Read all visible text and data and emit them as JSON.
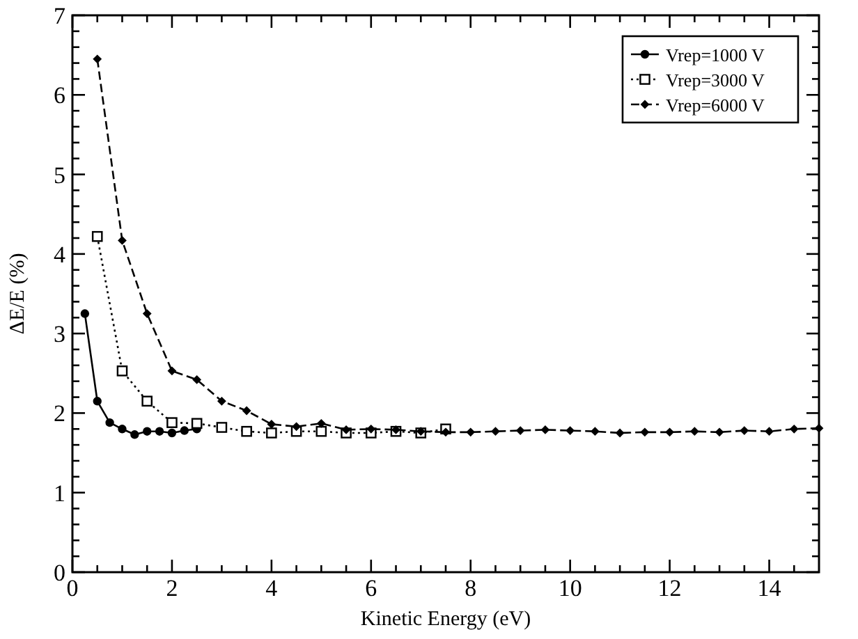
{
  "chart_data": {
    "type": "line",
    "xlabel": "Kinetic Energy (eV)",
    "ylabel": "ΔE/E (%)",
    "xlim": [
      0,
      15
    ],
    "ylim": [
      0,
      7
    ],
    "xticks": [
      0,
      {
        "value": 0.5,
        "label": null
      },
      {
        "value": 1,
        "label": null
      },
      {
        "value": 1.5,
        "label": null
      },
      2,
      {
        "value": 2.5,
        "label": null
      },
      {
        "value": 3,
        "label": null
      },
      {
        "value": 3.5,
        "label": null
      },
      4,
      {
        "value": 4.5,
        "label": null
      },
      {
        "value": 5,
        "label": null
      },
      {
        "value": 5.5,
        "label": null
      },
      6,
      {
        "value": 6.5,
        "label": null
      },
      {
        "value": 7,
        "label": null
      },
      {
        "value": 7.5,
        "label": null
      },
      8,
      {
        "value": 8.5,
        "label": null
      },
      {
        "value": 9,
        "label": null
      },
      {
        "value": 9.5,
        "label": null
      },
      10,
      {
        "value": 10.5,
        "label": null
      },
      {
        "value": 11,
        "label": null
      },
      {
        "value": 11.5,
        "label": null
      },
      12,
      {
        "value": 12.5,
        "label": null
      },
      {
        "value": 13,
        "label": null
      },
      {
        "value": 13.5,
        "label": null
      },
      14,
      {
        "value": 14.5,
        "label": null
      }
    ],
    "yticks": [
      0,
      {
        "value": 0.2,
        "label": null
      },
      {
        "value": 0.4,
        "label": null
      },
      {
        "value": 0.6,
        "label": null
      },
      {
        "value": 0.8,
        "label": null
      },
      1,
      {
        "value": 1.2,
        "label": null
      },
      {
        "value": 1.4,
        "label": null
      },
      {
        "value": 1.6,
        "label": null
      },
      {
        "value": 1.8,
        "label": null
      },
      2,
      {
        "value": 2.2,
        "label": null
      },
      {
        "value": 2.4,
        "label": null
      },
      {
        "value": 2.6,
        "label": null
      },
      {
        "value": 2.8,
        "label": null
      },
      3,
      {
        "value": 3.2,
        "label": null
      },
      {
        "value": 3.4,
        "label": null
      },
      {
        "value": 3.6,
        "label": null
      },
      {
        "value": 3.8,
        "label": null
      },
      4,
      {
        "value": 4.2,
        "label": null
      },
      {
        "value": 4.4,
        "label": null
      },
      {
        "value": 4.6,
        "label": null
      },
      {
        "value": 4.8,
        "label": null
      },
      5,
      {
        "value": 5.2,
        "label": null
      },
      {
        "value": 5.4,
        "label": null
      },
      {
        "value": 5.6,
        "label": null
      },
      {
        "value": 5.8,
        "label": null
      },
      6,
      {
        "value": 6.2,
        "label": null
      },
      {
        "value": 6.4,
        "label": null
      },
      {
        "value": 6.6,
        "label": null
      },
      {
        "value": 6.8,
        "label": null
      },
      7
    ],
    "grid": false,
    "legend": "top right",
    "series": [
      {
        "name": "Vrep=1000 V",
        "color": "#000000",
        "marker": "circle",
        "line_style": "solid",
        "x": [
          0.25,
          0.5,
          0.75,
          1,
          1.25,
          1.5,
          1.75,
          2,
          2.25,
          2.5
        ],
        "values": [
          3.25,
          2.15,
          1.88,
          1.8,
          1.73,
          1.77,
          1.77,
          1.75,
          1.78,
          1.8
        ]
      },
      {
        "name": "Vrep=3000 V",
        "color": "#000000",
        "marker": "square",
        "line_style": "dotted",
        "x": [
          0.5,
          1,
          1.5,
          2,
          2.5,
          3,
          3.5,
          4,
          4.5,
          5,
          5.5,
          6,
          6.5,
          7,
          7.5
        ],
        "values": [
          4.22,
          2.53,
          2.15,
          1.88,
          1.87,
          1.82,
          1.77,
          1.75,
          1.77,
          1.77,
          1.75,
          1.75,
          1.77,
          1.75,
          1.8
        ]
      },
      {
        "name": "Vrep=6000 V",
        "color": "#000000",
        "marker": "diamond",
        "line_style": "dashed",
        "x": [
          0.5,
          1,
          1.5,
          2,
          2.5,
          3,
          3.5,
          4,
          4.5,
          5,
          5.5,
          6,
          6.5,
          7,
          7.5,
          8,
          8.5,
          9,
          9.5,
          10,
          10.5,
          11,
          11.5,
          12,
          12.5,
          13,
          13.5,
          14,
          14.5,
          15
        ],
        "values": [
          6.45,
          4.17,
          3.25,
          2.53,
          2.42,
          2.15,
          2.03,
          1.86,
          1.83,
          1.87,
          1.79,
          1.8,
          1.79,
          1.77,
          1.76,
          1.76,
          1.77,
          1.78,
          1.79,
          1.78,
          1.77,
          1.75,
          1.76,
          1.76,
          1.77,
          1.76,
          1.78,
          1.77,
          1.8,
          1.81
        ]
      }
    ]
  }
}
